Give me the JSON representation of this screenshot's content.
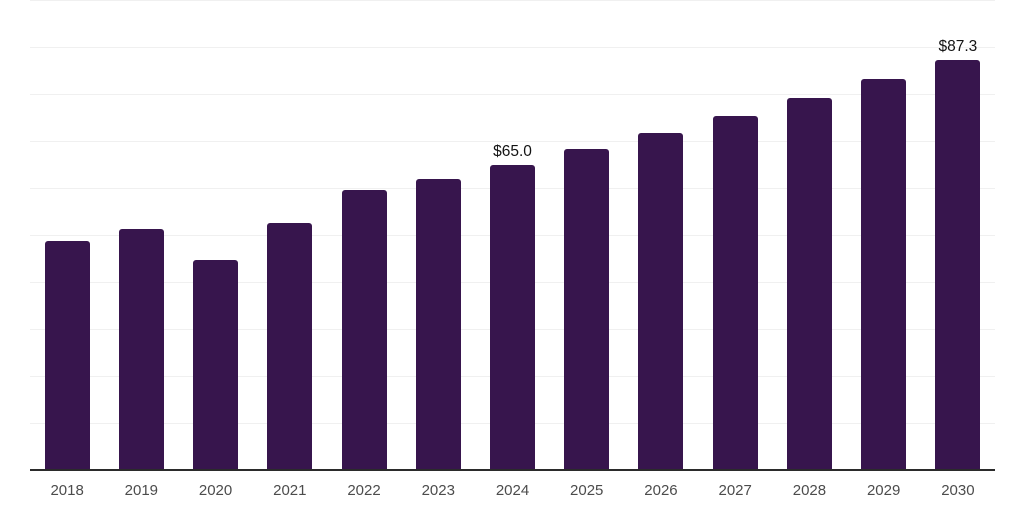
{
  "chart_data": {
    "type": "bar",
    "title": "",
    "xlabel": "",
    "ylabel": "",
    "categories": [
      "2018",
      "2019",
      "2020",
      "2021",
      "2022",
      "2023",
      "2024",
      "2025",
      "2026",
      "2027",
      "2028",
      "2029",
      "2030"
    ],
    "values": [
      48.8,
      51.3,
      44.7,
      52.5,
      59.5,
      61.9,
      65.0,
      68.3,
      71.7,
      75.3,
      79.1,
      83.1,
      87.3
    ],
    "value_labels": [
      {
        "category": "2024",
        "text": "$65.0"
      },
      {
        "category": "2030",
        "text": "$87.3"
      }
    ],
    "ylim": [
      0,
      100
    ],
    "grid_interval": 10,
    "grid_on": true,
    "legend": "none",
    "colors": {
      "bar": "#37154d",
      "gridline": "#f0f0f0",
      "axis_line": "#2b2b2b",
      "tick_label": "#4c4c4c",
      "value_label": "#131313",
      "background": "#ffffff"
    }
  }
}
